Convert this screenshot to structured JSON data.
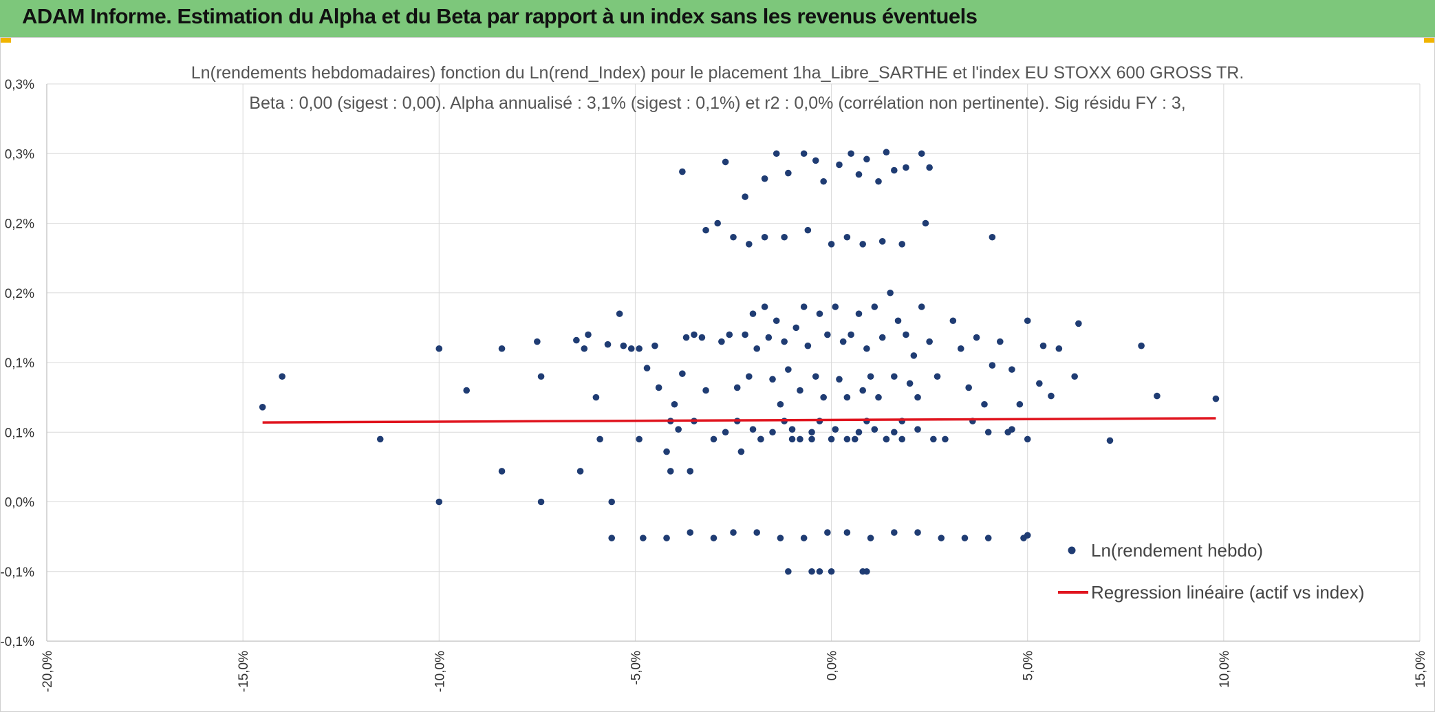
{
  "header": {
    "title": "ADAM Informe. Estimation du Alpha et du Beta par rapport à un index sans les revenus éventuels"
  },
  "colors": {
    "header_bg": "#7dc77b",
    "points": "#1f3c73",
    "regression": "#e0141e",
    "grid": "#d9d9d9"
  },
  "chart_data": {
    "type": "scatter",
    "title_lines": [
      "Ln(rendements hebdomadaires) fonction du Ln(rend_Index) pour le placement 1ha_Libre_SARTHE et l'index EU STOXX 600 GROSS TR.",
      "Beta : 0,00 (sigest : 0,00). Alpha annualisé : 3,1% (sigest : 0,1%) et r2 : 0,0% (corrélation non pertinente). Sig résidu FY : 3,"
    ],
    "xlim": [
      -20,
      15
    ],
    "ylim": [
      -0.1,
      0.3
    ],
    "x_ticks": [
      -20,
      -15,
      -10,
      -5,
      0,
      5,
      10,
      15
    ],
    "x_tick_labels": [
      "-20,0%",
      "-15,0%",
      "-10,0%",
      "-5,0%",
      "0,0%",
      "5,0%",
      "10,0%",
      "15,0%"
    ],
    "y_ticks": [
      -0.1,
      -0.05,
      0,
      0.05,
      0.1,
      0.15,
      0.2,
      0.25,
      0.3
    ],
    "y_tick_labels": [
      "-0,1%",
      "-0,1%",
      "0,0%",
      "0,1%",
      "0,1%",
      "0,2%",
      "0,2%",
      "0,3%",
      "0,3%"
    ],
    "grid": true,
    "legend_position": "bottom-right",
    "series": [
      {
        "name": "Ln(rendement hebdo)",
        "kind": "scatter",
        "x": [
          -14.5,
          -14.0,
          -11.5,
          -10.0,
          -10.0,
          -9.3,
          -8.4,
          -8.4,
          -7.5,
          -7.4,
          -7.4,
          -6.5,
          -6.4,
          -6.3,
          -6.2,
          -6.0,
          -5.9,
          -5.7,
          -5.6,
          -5.4,
          -5.3,
          -5.1,
          -4.9,
          -4.9,
          -4.7,
          -4.5,
          -4.4,
          -4.2,
          -4.1,
          -4.0,
          -3.8,
          -3.7,
          -3.6,
          -3.5,
          -3.3,
          -3.2,
          -3.0,
          -2.8,
          -2.6,
          -2.4,
          -2.3,
          -2.2,
          -2.1,
          -2.0,
          -1.9,
          -1.8,
          -1.7,
          -1.6,
          -1.5,
          -1.4,
          -1.3,
          -1.2,
          -1.1,
          -1.0,
          -0.9,
          -0.8,
          -0.7,
          -0.6,
          -0.5,
          -0.4,
          -0.3,
          -0.2,
          -0.1,
          0.0,
          0.1,
          0.2,
          0.3,
          0.4,
          0.5,
          0.6,
          0.7,
          0.8,
          0.9,
          1.0,
          1.1,
          1.2,
          1.3,
          1.4,
          1.5,
          1.6,
          1.7,
          1.8,
          1.9,
          2.0,
          2.1,
          2.2,
          2.3,
          2.5,
          2.7,
          2.9,
          3.1,
          3.3,
          3.5,
          3.7,
          3.9,
          4.1,
          4.3,
          4.5,
          4.6,
          4.8,
          5.0,
          5.0,
          5.3,
          5.4,
          5.6,
          5.8,
          6.2,
          6.3,
          7.1,
          7.9,
          8.3,
          9.8,
          -4.1,
          -3.9,
          -3.5,
          -2.7,
          -2.4,
          -2.0,
          -1.8,
          -1.5,
          -1.2,
          -1.0,
          -0.8,
          -0.5,
          -0.3,
          0.1,
          0.4,
          0.7,
          0.9,
          1.1,
          1.4,
          1.6,
          1.8,
          2.2,
          2.6,
          3.6,
          4.0,
          4.6,
          -3.8,
          -2.7,
          -2.2,
          -1.7,
          -1.4,
          -1.1,
          -0.7,
          -0.4,
          -0.2,
          0.2,
          0.5,
          0.7,
          0.9,
          1.2,
          1.4,
          1.6,
          1.9,
          2.3,
          2.5,
          -3.2,
          -2.9,
          -2.5,
          -2.1,
          -1.7,
          -1.2,
          -0.6,
          0.0,
          0.4,
          0.8,
          1.3,
          1.8,
          2.4,
          4.1,
          -1.1,
          -0.5,
          -0.3,
          0.0,
          0.8,
          0.9,
          -5.6,
          -4.8,
          -4.2,
          -3.6,
          -3.0,
          -2.5,
          -1.9,
          -1.3,
          -0.7,
          -0.1,
          0.4,
          1.0,
          1.6,
          2.2,
          2.8,
          3.4,
          4.0,
          4.9,
          5.0
        ],
        "y": [
          0.068,
          0.09,
          0.045,
          0.11,
          0.0,
          0.08,
          0.11,
          0.022,
          0.115,
          0.09,
          0.0,
          0.116,
          0.022,
          0.11,
          0.12,
          0.075,
          0.045,
          0.113,
          0.0,
          0.135,
          0.112,
          0.11,
          0.045,
          0.11,
          0.096,
          0.112,
          0.082,
          0.036,
          0.022,
          0.07,
          0.092,
          0.118,
          0.022,
          0.12,
          0.118,
          0.08,
          0.045,
          0.115,
          0.12,
          0.082,
          0.036,
          0.12,
          0.09,
          0.135,
          0.11,
          0.045,
          0.14,
          0.118,
          0.088,
          0.13,
          0.07,
          0.115,
          0.095,
          0.045,
          0.125,
          0.08,
          0.14,
          0.112,
          0.045,
          0.09,
          0.135,
          0.075,
          0.12,
          0.045,
          0.14,
          0.088,
          0.115,
          0.075,
          0.12,
          0.045,
          0.135,
          0.08,
          0.11,
          0.09,
          0.14,
          0.075,
          0.118,
          0.045,
          0.15,
          0.09,
          0.13,
          0.045,
          0.12,
          0.085,
          0.105,
          0.075,
          0.14,
          0.115,
          0.09,
          0.045,
          0.13,
          0.11,
          0.082,
          0.118,
          0.07,
          0.098,
          0.115,
          0.05,
          0.095,
          0.07,
          0.13,
          0.045,
          0.085,
          0.112,
          0.076,
          0.11,
          0.09,
          0.128,
          0.044,
          0.112,
          0.076,
          0.074,
          0.058,
          0.052,
          0.058,
          0.05,
          0.058,
          0.052,
          0.045,
          0.05,
          0.058,
          0.052,
          0.045,
          0.05,
          0.058,
          0.052,
          0.045,
          0.05,
          0.058,
          0.052,
          0.045,
          0.05,
          0.058,
          0.052,
          0.045,
          0.058,
          0.05,
          0.052,
          0.237,
          0.244,
          0.219,
          0.232,
          0.25,
          0.236,
          0.25,
          0.245,
          0.23,
          0.242,
          0.25,
          0.235,
          0.246,
          0.23,
          0.251,
          0.238,
          0.24,
          0.25,
          0.24,
          0.195,
          0.2,
          0.19,
          0.185,
          0.19,
          0.19,
          0.195,
          0.185,
          0.19,
          0.185,
          0.187,
          0.185,
          0.2,
          0.19,
          -0.05,
          -0.05,
          -0.05,
          -0.05,
          -0.05,
          -0.05,
          -0.026,
          -0.026,
          -0.026,
          -0.022,
          -0.026,
          -0.022,
          -0.022,
          -0.026,
          -0.026,
          -0.022,
          -0.022,
          -0.026,
          -0.022,
          -0.022,
          -0.026,
          -0.026,
          -0.026,
          -0.026,
          -0.024
        ]
      },
      {
        "name": "Regression linéaire (actif vs index)",
        "kind": "line",
        "x": [
          -14.5,
          9.8
        ],
        "y": [
          0.057,
          0.06
        ]
      }
    ]
  }
}
